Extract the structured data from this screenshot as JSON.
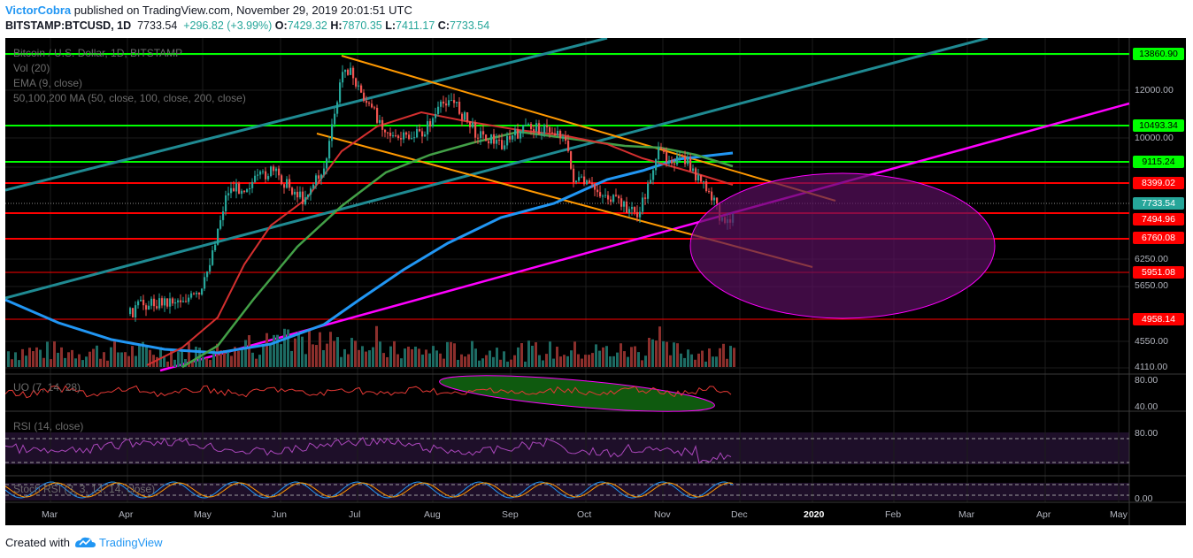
{
  "header": {
    "author": "VictorCobra",
    "published_text": "published on TradingView.com, November 29, 2019 20:01:51 UTC",
    "symbol": "BITSTAMP:BTCUSD, 1D",
    "last": "7733.54",
    "change": "+296.82 (+3.99%)",
    "o_label": "O:",
    "o_value": "7429.32",
    "h_label": "H:",
    "h_value": "7870.35",
    "l_label": "L:",
    "l_value": "7411.17",
    "c_label": "C:",
    "c_value": "7733.54"
  },
  "legends": {
    "title": "Bitcoin / U.S. Dollar, 1D, BITSTAMP",
    "vol": "Vol (20)",
    "ema": "EMA (9, close)",
    "ma": "50,100,200 MA (50, close, 100, close, 200, close)",
    "uo": "UO (7, 14, 28)",
    "rsi": "RSI (14, close)",
    "stoch": "Stoch RSI (3, 3, 14, 14, close)"
  },
  "price_labels": [
    {
      "text": "13860.90",
      "bg": "#00ff00",
      "fg": "#000000"
    },
    {
      "text": "10493.34",
      "bg": "#00ff00",
      "fg": "#000000"
    },
    {
      "text": "9115.24",
      "bg": "#00ff00",
      "fg": "#000000"
    },
    {
      "text": "8399.02",
      "bg": "#ff0000",
      "fg": "#ffffff"
    },
    {
      "text": "7733.54",
      "bg": "#26a69a",
      "fg": "#ffffff"
    },
    {
      "text": "7494.96",
      "bg": "#ff0000",
      "fg": "#ffffff"
    },
    {
      "text": "6760.08",
      "bg": "#ff0000",
      "fg": "#ffffff"
    },
    {
      "text": "5951.08",
      "bg": "#ff0000",
      "fg": "#ffffff"
    },
    {
      "text": "4958.14",
      "bg": "#ff0000",
      "fg": "#ffffff"
    }
  ],
  "price_ticks": [
    "12000.00",
    "10000.00",
    "6250.00",
    "5650.00",
    "4550.00",
    "4110.00"
  ],
  "uo_ticks": [
    "80.00",
    "40.00"
  ],
  "rsi_ticks": [
    "80.00"
  ],
  "stoch_ticks": [
    "0.00"
  ],
  "x_ticks": [
    {
      "text": "Mar",
      "bold": false
    },
    {
      "text": "Apr",
      "bold": false
    },
    {
      "text": "May",
      "bold": false
    },
    {
      "text": "Jun",
      "bold": false
    },
    {
      "text": "Jul",
      "bold": false
    },
    {
      "text": "Aug",
      "bold": false
    },
    {
      "text": "Sep",
      "bold": false
    },
    {
      "text": "Oct",
      "bold": false
    },
    {
      "text": "Nov",
      "bold": false
    },
    {
      "text": "Dec",
      "bold": false
    },
    {
      "text": "2020",
      "bold": true
    },
    {
      "text": "Feb",
      "bold": false
    },
    {
      "text": "Mar",
      "bold": false
    },
    {
      "text": "Apr",
      "bold": false
    },
    {
      "text": "May",
      "bold": false
    }
  ],
  "footer": {
    "created_with": "Created with",
    "brand": "TradingView"
  },
  "colors": {
    "up": "#26a69a",
    "down": "#ef5350",
    "background": "#000000",
    "ma50": "#d32f2f",
    "ma100": "#43a047",
    "ma200": "#2196f3",
    "channel": "#ff9800",
    "trend": "#ff00ff",
    "support": "#00ff00",
    "resistance": "#ff0000"
  }
}
